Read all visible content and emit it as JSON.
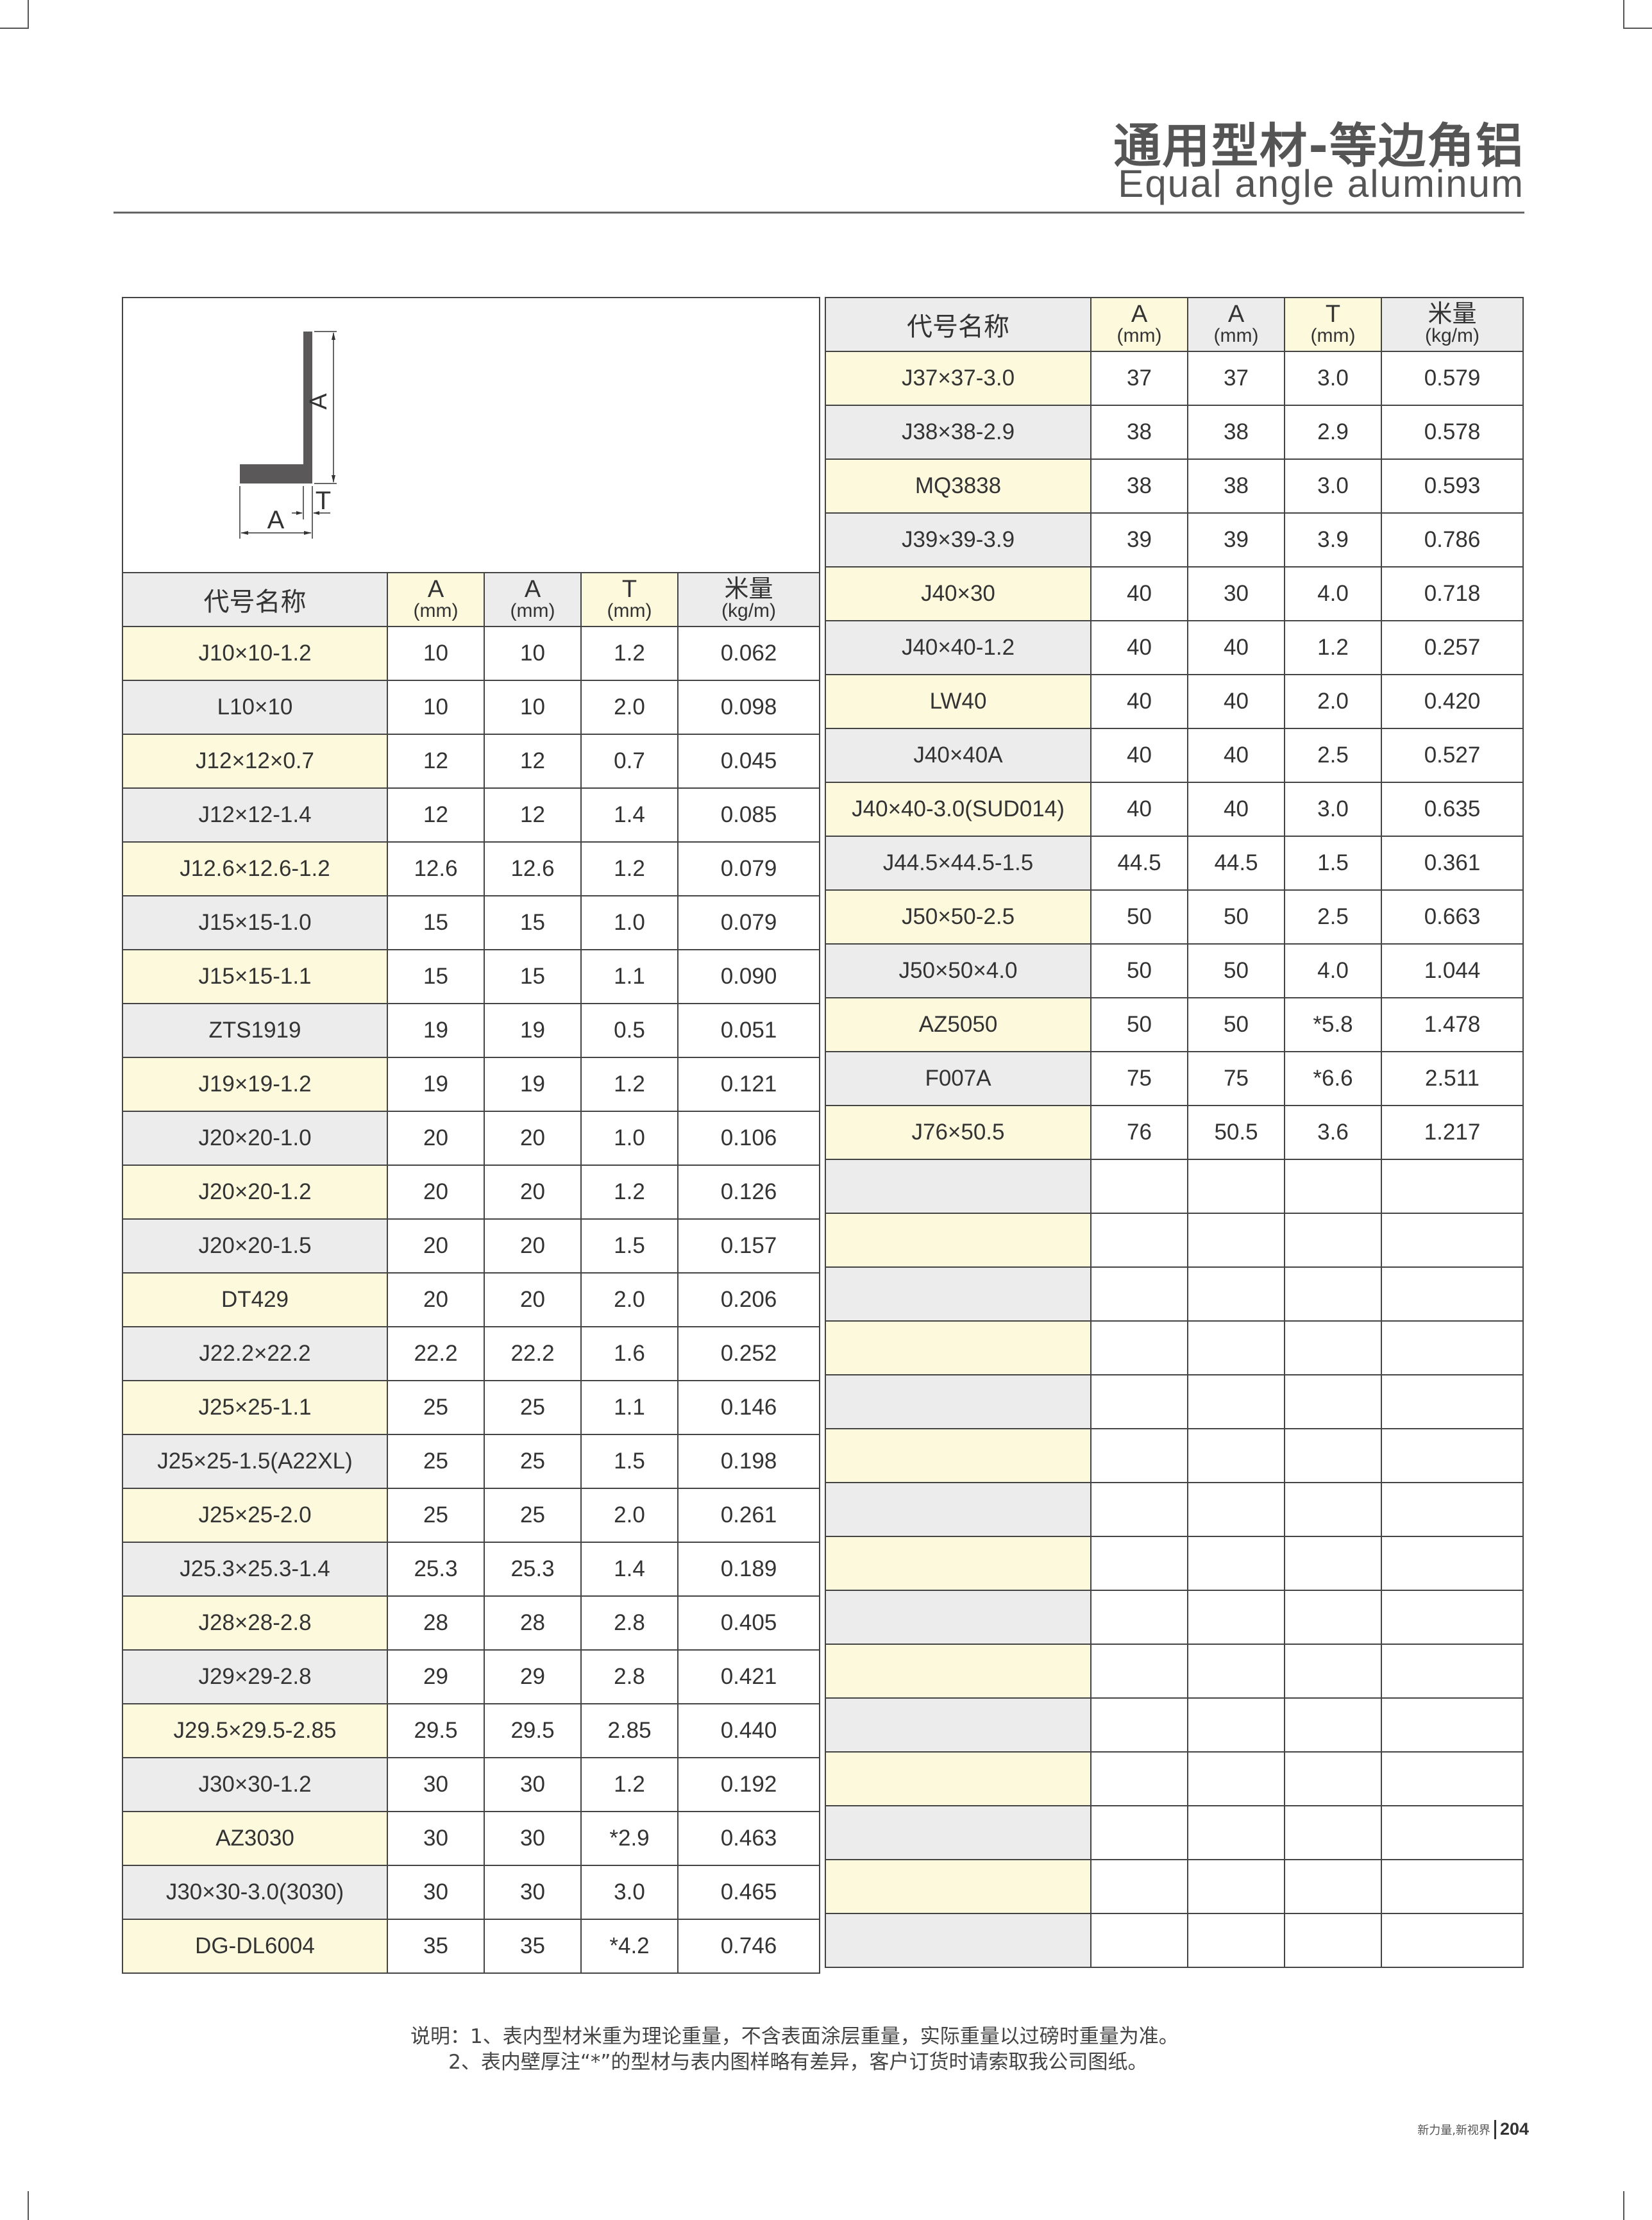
{
  "header": {
    "title_cn": "通用型材-等边角铝",
    "title_en": "Equal angle aluminum"
  },
  "diagram": {
    "label_a_vertical": "A",
    "label_a_horizontal": "A",
    "label_t": "T"
  },
  "columns": {
    "name": "代号名称",
    "a1": "A",
    "a1_unit": "(mm)",
    "a2": "A",
    "a2_unit": "(mm)",
    "t": "T",
    "t_unit": "(mm)",
    "weight": "米量",
    "weight_unit": "(kg/m)"
  },
  "left_rows": [
    [
      "J10×10-1.2",
      "10",
      "10",
      "1.2",
      "0.062"
    ],
    [
      "L10×10",
      "10",
      "10",
      "2.0",
      "0.098"
    ],
    [
      "J12×12×0.7",
      "12",
      "12",
      "0.7",
      "0.045"
    ],
    [
      "J12×12-1.4",
      "12",
      "12",
      "1.4",
      "0.085"
    ],
    [
      "J12.6×12.6-1.2",
      "12.6",
      "12.6",
      "1.2",
      "0.079"
    ],
    [
      "J15×15-1.0",
      "15",
      "15",
      "1.0",
      "0.079"
    ],
    [
      "J15×15-1.1",
      "15",
      "15",
      "1.1",
      "0.090"
    ],
    [
      "ZTS1919",
      "19",
      "19",
      "0.5",
      "0.051"
    ],
    [
      "J19×19-1.2",
      "19",
      "19",
      "1.2",
      "0.121"
    ],
    [
      "J20×20-1.0",
      "20",
      "20",
      "1.0",
      "0.106"
    ],
    [
      "J20×20-1.2",
      "20",
      "20",
      "1.2",
      "0.126"
    ],
    [
      "J20×20-1.5",
      "20",
      "20",
      "1.5",
      "0.157"
    ],
    [
      "DT429",
      "20",
      "20",
      "2.0",
      "0.206"
    ],
    [
      "J22.2×22.2",
      "22.2",
      "22.2",
      "1.6",
      "0.252"
    ],
    [
      "J25×25-1.1",
      "25",
      "25",
      "1.1",
      "0.146"
    ],
    [
      "J25×25-1.5(A22XL)",
      "25",
      "25",
      "1.5",
      "0.198"
    ],
    [
      "J25×25-2.0",
      "25",
      "25",
      "2.0",
      "0.261"
    ],
    [
      "J25.3×25.3-1.4",
      "25.3",
      "25.3",
      "1.4",
      "0.189"
    ],
    [
      "J28×28-2.8",
      "28",
      "28",
      "2.8",
      "0.405"
    ],
    [
      "J29×29-2.8",
      "29",
      "29",
      "2.8",
      "0.421"
    ],
    [
      "J29.5×29.5-2.85",
      "29.5",
      "29.5",
      "2.85",
      "0.440"
    ],
    [
      "J30×30-1.2",
      "30",
      "30",
      "1.2",
      "0.192"
    ],
    [
      "AZ3030",
      "30",
      "30",
      "*2.9",
      "0.463"
    ],
    [
      "J30×30-3.0(3030)",
      "30",
      "30",
      "3.0",
      "0.465"
    ],
    [
      "DG-DL6004",
      "35",
      "35",
      "*4.2",
      "0.746"
    ]
  ],
  "right_rows": [
    [
      "J37×37-3.0",
      "37",
      "37",
      "3.0",
      "0.579"
    ],
    [
      "J38×38-2.9",
      "38",
      "38",
      "2.9",
      "0.578"
    ],
    [
      "MQ3838",
      "38",
      "38",
      "3.0",
      "0.593"
    ],
    [
      "J39×39-3.9",
      "39",
      "39",
      "3.9",
      "0.786"
    ],
    [
      "J40×30",
      "40",
      "30",
      "4.0",
      "0.718"
    ],
    [
      "J40×40-1.2",
      "40",
      "40",
      "1.2",
      "0.257"
    ],
    [
      "LW40",
      "40",
      "40",
      "2.0",
      "0.420"
    ],
    [
      "J40×40A",
      "40",
      "40",
      "2.5",
      "0.527"
    ],
    [
      "J40×40-3.0(SUD014)",
      "40",
      "40",
      "3.0",
      "0.635"
    ],
    [
      "J44.5×44.5-1.5",
      "44.5",
      "44.5",
      "1.5",
      "0.361"
    ],
    [
      "J50×50-2.5",
      "50",
      "50",
      "2.5",
      "0.663"
    ],
    [
      "J50×50×4.0",
      "50",
      "50",
      "4.0",
      "1.044"
    ],
    [
      "AZ5050",
      "50",
      "50",
      "*5.8",
      "1.478"
    ],
    [
      "F007A",
      "75",
      "75",
      "*6.6",
      "2.511"
    ],
    [
      "J76×50.5",
      "76",
      "50.5",
      "3.6",
      "1.217"
    ]
  ],
  "notes": {
    "line1": "说明：1、表内型材米重为理论重量，不含表面涂层重量，实际重量以过磅时重量为准。",
    "line2": "      2、表内壁厚注“*”的型材与表内图样略有差异，客户订货时请索取我公司图纸。"
  },
  "footer": {
    "slogan": "新力量,新视界",
    "page_number": "204"
  },
  "colors": {
    "name_cell_odd": "#fdf9dc",
    "name_cell_even": "#ececec",
    "text": "#333333",
    "border": "#444444"
  }
}
